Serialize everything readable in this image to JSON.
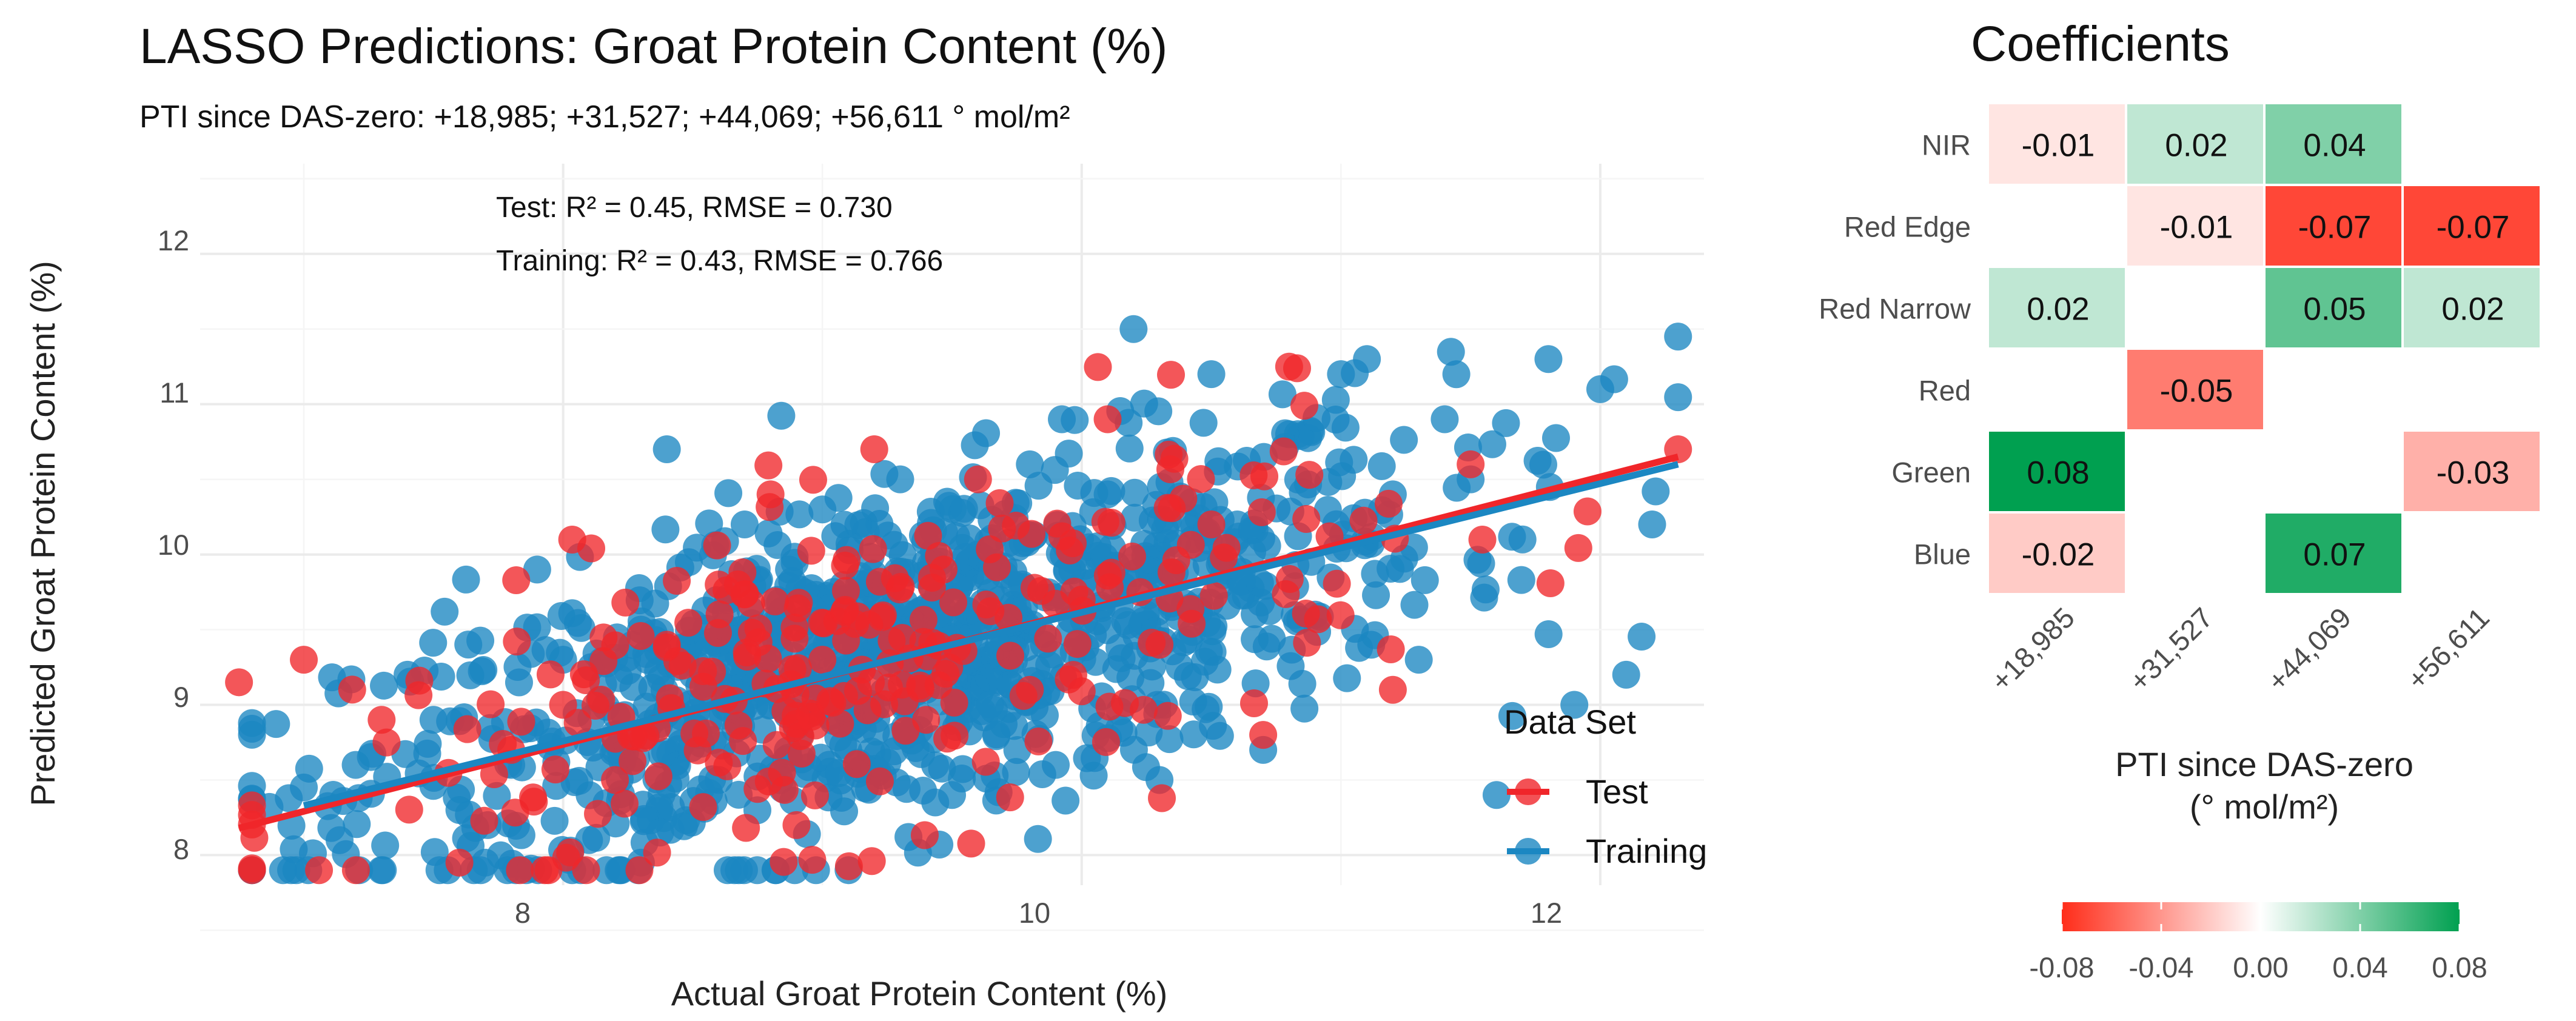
{
  "chart_data": [
    {
      "type": "scatter",
      "title": "LASSO Predictions: Groat Protein Content (%)",
      "subtitle": "PTI since DAS-zero: +18,985; +31,527; +44,069; +56,611 ° mol/m²",
      "xlabel": "Actual Groat Protein Content (%)",
      "ylabel": "Predicted Groat Protein Content (%)",
      "xlim": [
        6.6,
        12.4
      ],
      "ylim": [
        7.8,
        12.6
      ],
      "x_ticks": [
        "8",
        "10",
        "12"
      ],
      "y_ticks": [
        "8",
        "9",
        "10",
        "11",
        "12"
      ],
      "grid": true,
      "annotations": [
        "Test: R² = 0.45, RMSE = 0.730",
        "Training: R² = 0.43, RMSE = 0.766"
      ],
      "legend": {
        "title": "Data Set",
        "position": "right",
        "entries": [
          "Test",
          "Training"
        ]
      },
      "series": [
        {
          "name": "Training",
          "color": "#1b87c2",
          "points_count_approx": 1100,
          "points_sample": [
            [
              7.0,
              8.45
            ],
            [
              7.2,
              8.6
            ],
            [
              7.4,
              9.2
            ],
            [
              7.5,
              8.9
            ],
            [
              7.6,
              8.3
            ],
            [
              7.7,
              7.95
            ],
            [
              7.8,
              8.6
            ],
            [
              7.9,
              9.9
            ],
            [
              8.0,
              9.3
            ],
            [
              8.1,
              8.1
            ],
            [
              8.2,
              8.7
            ],
            [
              8.3,
              9.5
            ],
            [
              8.3,
              7.95
            ],
            [
              8.4,
              10.7
            ],
            [
              8.5,
              9.2
            ],
            [
              8.6,
              8.5
            ],
            [
              8.7,
              10.2
            ],
            [
              8.8,
              9.0
            ],
            [
              8.9,
              9.6
            ],
            [
              9.0,
              10.3
            ],
            [
              9.1,
              8.7
            ],
            [
              9.2,
              9.8
            ],
            [
              9.3,
              10.5
            ],
            [
              9.4,
              9.1
            ],
            [
              9.5,
              8.4
            ],
            [
              9.6,
              10.0
            ],
            [
              9.7,
              9.4
            ],
            [
              9.8,
              10.6
            ],
            [
              9.9,
              8.6
            ],
            [
              10.0,
              9.7
            ],
            [
              10.1,
              10.4
            ],
            [
              10.2,
              11.5
            ],
            [
              10.3,
              8.5
            ],
            [
              10.4,
              9.9
            ],
            [
              10.5,
              11.2
            ],
            [
              10.6,
              10.2
            ],
            [
              10.7,
              8.7
            ],
            [
              10.8,
              10.8
            ],
            [
              10.9,
              9.6
            ],
            [
              11.0,
              11.2
            ],
            [
              11.1,
              11.3
            ],
            [
              11.2,
              10.4
            ],
            [
              11.3,
              9.3
            ],
            [
              11.4,
              10.9
            ],
            [
              11.5,
              10.5
            ],
            [
              11.6,
              8.4
            ],
            [
              11.7,
              10.1
            ],
            [
              11.8,
              11.3
            ],
            [
              11.9,
              9.0
            ],
            [
              12.0,
              11.1
            ],
            [
              12.1,
              9.2
            ],
            [
              12.2,
              10.2
            ],
            [
              12.3,
              11.45
            ]
          ],
          "fit_line": [
            [
              7.0,
              8.33
            ],
            [
              12.3,
              10.6
            ]
          ]
        },
        {
          "name": "Test",
          "color": "#f0262a",
          "points_count_approx": 300,
          "points_sample": [
            [
              6.75,
              9.15
            ],
            [
              7.0,
              9.3
            ],
            [
              7.3,
              8.9
            ],
            [
              7.6,
              7.95
            ],
            [
              7.8,
              8.7
            ],
            [
              8.0,
              9.0
            ],
            [
              8.2,
              8.5
            ],
            [
              8.4,
              9.4
            ],
            [
              8.6,
              9.8
            ],
            [
              8.8,
              10.4
            ],
            [
              8.9,
              8.2
            ],
            [
              9.0,
              9.3
            ],
            [
              9.2,
              10.7
            ],
            [
              9.4,
              8.9
            ],
            [
              9.6,
              10.5
            ],
            [
              9.8,
              9.1
            ],
            [
              10.0,
              9.7
            ],
            [
              10.1,
              10.9
            ],
            [
              10.3,
              9.4
            ],
            [
              10.5,
              10.2
            ],
            [
              10.7,
              8.8
            ],
            [
              10.8,
              11.25
            ],
            [
              11.2,
              9.1
            ],
            [
              11.5,
              10.6
            ],
            [
              12.3,
              10.7
            ]
          ],
          "fit_line": [
            [
              6.75,
              8.18
            ],
            [
              12.3,
              10.65
            ]
          ]
        }
      ]
    },
    {
      "type": "heatmap",
      "title": "Coefficients",
      "xlabel": "PTI since DAS-zero",
      "xlabel_line2": "(° mol/m²)",
      "columns": [
        "+18,985",
        "+31,527",
        "+44,069",
        "+56,611"
      ],
      "rows": [
        "NIR",
        "Red Edge",
        "Red Narrow",
        "Red",
        "Green",
        "Blue"
      ],
      "values": [
        [
          -0.01,
          0.02,
          0.04,
          null
        ],
        [
          null,
          -0.01,
          -0.07,
          -0.07
        ],
        [
          0.02,
          null,
          0.05,
          0.02
        ],
        [
          null,
          -0.05,
          null,
          null
        ],
        [
          0.08,
          null,
          null,
          -0.03
        ],
        [
          -0.02,
          null,
          0.07,
          null
        ]
      ],
      "labels": [
        [
          "-0.01",
          "0.02",
          "0.04",
          ""
        ],
        [
          "",
          "-0.01",
          "-0.07",
          "-0.07"
        ],
        [
          "0.02",
          "",
          "0.05",
          "0.02"
        ],
        [
          "",
          "-0.05",
          "",
          ""
        ],
        [
          "0.08",
          "",
          "",
          "-0.03"
        ],
        [
          "-0.02",
          "",
          "0.07",
          ""
        ]
      ],
      "color_scale": {
        "low": "#ff2d1a",
        "mid": "#ffffff",
        "high": "#00a050",
        "limits": [
          -0.08,
          0.08
        ]
      },
      "colorbar_ticks": [
        "-0.08",
        "-0.04",
        "0.00",
        "0.04",
        "0.08"
      ],
      "colorbar_values": [
        -0.08,
        -0.04,
        0.0,
        0.04,
        0.08
      ],
      "legend_position": "bottom"
    }
  ]
}
